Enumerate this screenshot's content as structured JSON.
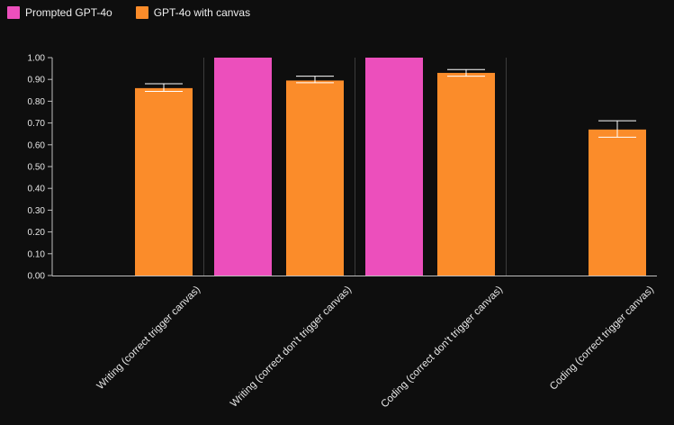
{
  "chart_data": {
    "type": "bar",
    "title": "",
    "xlabel": "",
    "ylabel": "",
    "ylim": [
      0,
      1
    ],
    "yticks": [
      "0.00",
      "0.10",
      "0.20",
      "0.30",
      "0.40",
      "0.50",
      "0.60",
      "0.70",
      "0.80",
      "0.90",
      "1.00"
    ],
    "categories": [
      "Writing (correct trigger canvas)",
      "Writing (correct don't trigger canvas)",
      "Coding (correct don't trigger canvas)",
      "Coding (correct trigger canvas)"
    ],
    "series": [
      {
        "name": "Prompted GPT-4o",
        "color": "#ec4fbc",
        "values": [
          null,
          1.0,
          1.0,
          null
        ],
        "error_low": [
          null,
          null,
          null,
          null
        ],
        "error_high": [
          null,
          null,
          null,
          null
        ]
      },
      {
        "name": "GPT-4o with canvas",
        "color": "#fb8c2a",
        "values": [
          0.86,
          0.895,
          0.93,
          0.67
        ],
        "error_low": [
          0.845,
          0.885,
          0.915,
          0.635
        ],
        "error_high": [
          0.88,
          0.915,
          0.945,
          0.71
        ]
      }
    ],
    "legend_position": "top-left"
  }
}
